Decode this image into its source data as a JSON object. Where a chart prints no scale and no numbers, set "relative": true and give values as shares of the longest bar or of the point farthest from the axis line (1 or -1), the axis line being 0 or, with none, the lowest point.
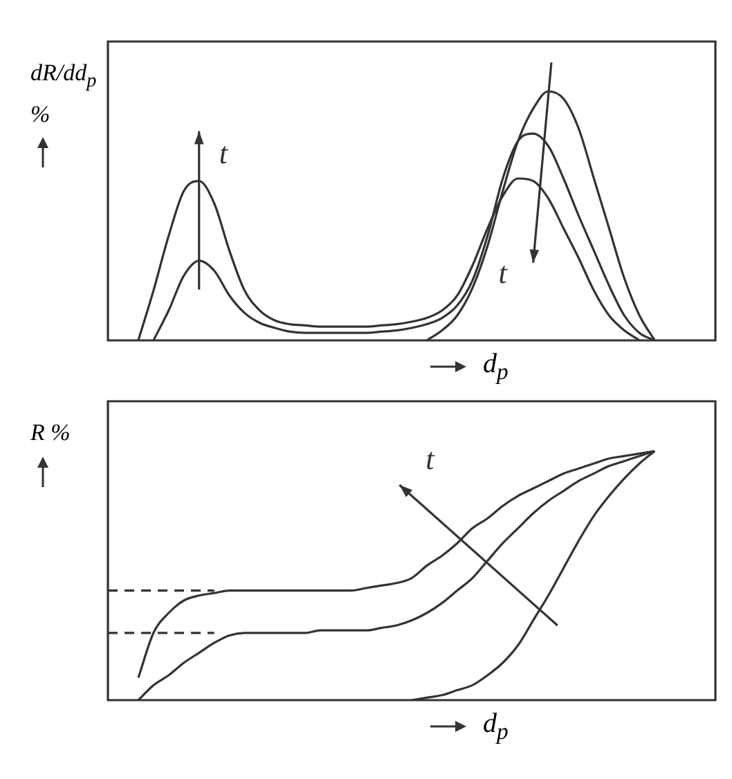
{
  "chart_data": [
    {
      "type": "line",
      "ylabel": "dR/dd$_{p}$ %",
      "xlabel": "d$_{p}$",
      "relative": true,
      "marker": "none",
      "line_style": "solid",
      "grid": false,
      "legend": false,
      "annotations": [
        "t",
        "t"
      ],
      "categories": [
        null,
        null,
        null,
        null,
        null,
        null,
        null,
        null,
        null,
        null,
        null,
        null,
        null,
        null,
        null,
        null,
        null,
        null,
        null,
        null,
        null,
        null,
        null,
        null,
        null,
        null,
        null,
        null,
        null,
        null,
        null,
        null,
        null,
        null,
        null,
        null,
        null,
        null,
        null,
        null,
        null
      ],
      "series": [
        {
          "color": "#333333",
          "values": [
            null,
            null,
            null,
            null,
            null,
            null,
            null,
            null,
            null,
            null,
            null,
            null,
            null,
            null,
            null,
            null,
            null,
            null,
            null,
            null,
            null,
            0,
            0.04,
            0.1,
            0.21,
            0.38,
            0.6,
            0.8,
            0.93,
            1,
            0.97,
            0.85,
            0.65,
            0.45,
            0.25,
            0.1,
            0,
            null,
            null,
            null,
            null
          ]
        },
        {
          "color": "#333333",
          "values": [
            null,
            null,
            null,
            0,
            0.12,
            0.26,
            0.32,
            0.28,
            0.18,
            0.11,
            0.07,
            0.05,
            0.035,
            0.03,
            0.03,
            0.03,
            0.03,
            0.03,
            0.035,
            0.04,
            0.05,
            0.065,
            0.09,
            0.14,
            0.24,
            0.42,
            0.65,
            0.8,
            0.83,
            0.78,
            0.65,
            0.5,
            0.36,
            0.22,
            0.1,
            0.03,
            0,
            null,
            null,
            null,
            null
          ]
        },
        {
          "color": "#333333",
          "values": [
            null,
            null,
            0,
            0.2,
            0.42,
            0.6,
            0.64,
            0.55,
            0.36,
            0.2,
            0.12,
            0.08,
            0.065,
            0.06,
            0.055,
            0.055,
            0.055,
            0.055,
            0.06,
            0.065,
            0.075,
            0.09,
            0.12,
            0.18,
            0.3,
            0.45,
            0.58,
            0.65,
            0.64,
            0.57,
            0.45,
            0.33,
            0.2,
            0.1,
            0.04,
            0,
            null,
            null,
            null,
            null,
            null
          ]
        }
      ]
    },
    {
      "type": "line",
      "ylabel": "R %",
      "xlabel": "d$_{p}$",
      "relative": true,
      "marker": "none",
      "line_style": "solid",
      "grid": false,
      "legend": false,
      "annotations": [
        "t"
      ],
      "categories": [
        null,
        null,
        null,
        null,
        null,
        null,
        null,
        null,
        null,
        null,
        null,
        null,
        null,
        null,
        null,
        null,
        null,
        null,
        null,
        null,
        null,
        null,
        null,
        null,
        null,
        null,
        null,
        null,
        null,
        null,
        null,
        null,
        null,
        null,
        null,
        null,
        null,
        null,
        null,
        null,
        null
      ],
      "series": [
        {
          "color": "#333333",
          "values": [
            null,
            null,
            0.09,
            0.27,
            0.35,
            0.4,
            0.42,
            0.43,
            0.44,
            0.44,
            0.44,
            0.44,
            0.44,
            0.44,
            0.44,
            0.44,
            0.44,
            0.45,
            0.46,
            0.47,
            0.49,
            0.54,
            0.58,
            0.63,
            0.69,
            0.73,
            0.78,
            0.82,
            0.85,
            0.88,
            0.91,
            0.93,
            0.95,
            0.97,
            0.98,
            0.99,
            1,
            null,
            null,
            null,
            null
          ]
        },
        {
          "color": "#333333",
          "values": [
            null,
            null,
            0,
            0.06,
            0.1,
            0.15,
            0.19,
            0.23,
            0.26,
            0.27,
            0.27,
            0.27,
            0.27,
            0.27,
            0.28,
            0.28,
            0.28,
            0.28,
            0.29,
            0.3,
            0.32,
            0.35,
            0.39,
            0.44,
            0.49,
            0.56,
            0.63,
            0.69,
            0.75,
            0.8,
            0.84,
            0.88,
            0.91,
            0.94,
            0.96,
            0.98,
            1,
            null,
            null,
            null,
            null
          ]
        },
        {
          "color": "#333333",
          "values": [
            null,
            null,
            null,
            null,
            null,
            null,
            null,
            null,
            null,
            null,
            null,
            null,
            null,
            null,
            null,
            null,
            null,
            null,
            null,
            null,
            0,
            0.01,
            0.02,
            0.04,
            0.06,
            0.1,
            0.15,
            0.22,
            0.32,
            0.42,
            0.53,
            0.64,
            0.74,
            0.82,
            0.89,
            0.95,
            1,
            null,
            null,
            null,
            null
          ]
        },
        {
          "color": "#333333",
          "line_style": "dashed",
          "values": [
            0.44,
            0.44,
            0.44,
            0.44,
            0.44,
            0.44,
            0.44,
            0.44,
            null,
            null,
            null,
            null,
            null,
            null,
            null,
            null,
            null,
            null,
            null,
            null,
            null,
            null,
            null,
            null,
            null,
            null,
            null,
            null,
            null,
            null,
            null,
            null,
            null,
            null,
            null,
            null,
            null,
            null,
            null,
            null,
            null
          ]
        },
        {
          "color": "#333333",
          "line_style": "dashed",
          "values": [
            0.27,
            0.27,
            0.27,
            0.27,
            0.27,
            0.27,
            0.27,
            0.27,
            null,
            null,
            null,
            null,
            null,
            null,
            null,
            null,
            null,
            null,
            null,
            null,
            null,
            null,
            null,
            null,
            null,
            null,
            null,
            null,
            null,
            null,
            null,
            null,
            null,
            null,
            null,
            null,
            null,
            null,
            null,
            null,
            null
          ]
        }
      ]
    }
  ]
}
